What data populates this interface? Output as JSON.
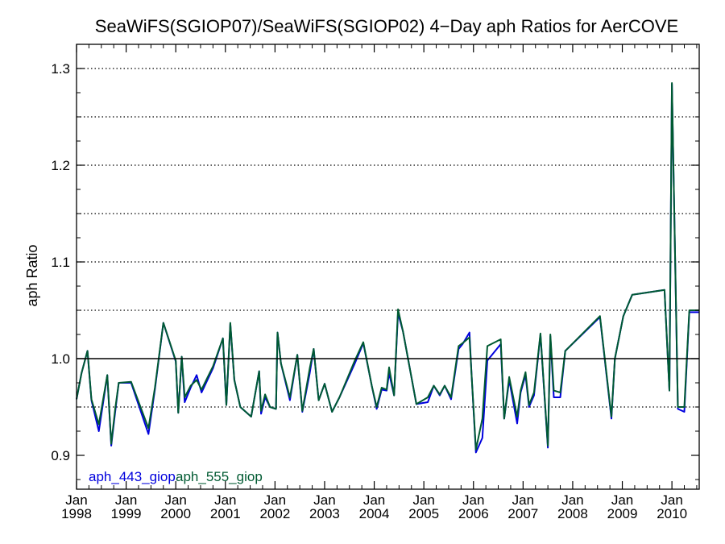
{
  "chart_data": {
    "type": "line",
    "title": "SeaWiFS(SGIOP07)/SeaWiFS(SGIOP02) 4−Day aph Ratios for AerCOVE",
    "xlabel": "",
    "ylabel": "aph Ratio",
    "xlim": [
      1998.0,
      2010.55
    ],
    "ylim": [
      0.865,
      1.325
    ],
    "y_ticks": [
      0.9,
      1.0,
      1.1,
      1.2,
      1.3
    ],
    "y_tick_labels": [
      "0.9",
      "1.0",
      "1.1",
      "1.2",
      "1.3"
    ],
    "y_dotted_grid": [
      0.95,
      1.05,
      1.1,
      1.15,
      1.2,
      1.25,
      1.3
    ],
    "reference_line": 1.0,
    "x_ticks": [
      {
        "value": 1998,
        "month": "Jan",
        "year": "1998"
      },
      {
        "value": 1999,
        "month": "Jan",
        "year": "1999"
      },
      {
        "value": 2000,
        "month": "Jan",
        "year": "2000"
      },
      {
        "value": 2001,
        "month": "Jan",
        "year": "2001"
      },
      {
        "value": 2002,
        "month": "Jan",
        "year": "2002"
      },
      {
        "value": 2003,
        "month": "Jan",
        "year": "2003"
      },
      {
        "value": 2004,
        "month": "Jan",
        "year": "2004"
      },
      {
        "value": 2005,
        "month": "Jan",
        "year": "2005"
      },
      {
        "value": 2006,
        "month": "Jan",
        "year": "2006"
      },
      {
        "value": 2007,
        "month": "Jan",
        "year": "2007"
      },
      {
        "value": 2008,
        "month": "Jan",
        "year": "2008"
      },
      {
        "value": 2009,
        "month": "Jan",
        "year": "2009"
      },
      {
        "value": 2010,
        "month": "Jan",
        "year": "2010"
      }
    ],
    "legend_placement": "bottom-left",
    "series": [
      {
        "name": "aph_443_giop",
        "color": "#0000dd",
        "x": [
          1998.0,
          1998.1,
          1998.22,
          1998.3,
          1998.45,
          1998.62,
          1998.7,
          1998.78,
          1998.85,
          1999.1,
          1999.45,
          1999.58,
          1999.75,
          2000.0,
          2000.05,
          2000.12,
          2000.18,
          2000.3,
          2000.42,
          2000.52,
          2000.75,
          2000.95,
          2001.02,
          2001.1,
          2001.18,
          2001.3,
          2001.52,
          2001.68,
          2001.72,
          2001.8,
          2001.9,
          2002.02,
          2002.05,
          2002.12,
          2002.3,
          2002.45,
          2002.55,
          2002.7,
          2002.78,
          2002.88,
          2003.0,
          2003.15,
          2003.3,
          2003.6,
          2003.78,
          2003.95,
          2004.05,
          2004.15,
          2004.25,
          2004.3,
          2004.4,
          2004.48,
          2004.58,
          2004.85,
          2005.08,
          2005.2,
          2005.32,
          2005.42,
          2005.55,
          2005.7,
          2005.78,
          2005.92,
          2005.96,
          2006.05,
          2006.18,
          2006.28,
          2006.55,
          2006.62,
          2006.72,
          2006.88,
          2006.95,
          2007.05,
          2007.12,
          2007.22,
          2007.35,
          2007.5,
          2007.55,
          2007.62,
          2007.75,
          2007.85,
          2008.55,
          2008.78,
          2008.85,
          2009.02,
          2009.2,
          2009.85,
          2009.95,
          2010.0,
          2010.12,
          2010.25,
          2010.35,
          2010.48,
          2010.55
        ],
        "values": [
          0.958,
          0.985,
          1.008,
          0.957,
          0.925,
          0.983,
          0.91,
          0.945,
          0.975,
          0.975,
          0.922,
          0.968,
          1.037,
          0.997,
          0.944,
          1.002,
          0.955,
          0.97,
          0.983,
          0.965,
          0.99,
          1.021,
          0.952,
          1.036,
          0.978,
          0.95,
          0.94,
          0.987,
          0.943,
          0.96,
          0.95,
          0.948,
          1.027,
          0.995,
          0.957,
          1.004,
          0.945,
          0.985,
          1.01,
          0.957,
          0.974,
          0.945,
          0.96,
          0.994,
          1.016,
          0.972,
          0.948,
          0.968,
          0.967,
          0.985,
          0.962,
          1.047,
          1.028,
          0.953,
          0.955,
          0.972,
          0.962,
          0.972,
          0.958,
          1.01,
          1.015,
          1.027,
          0.985,
          0.903,
          0.918,
          0.998,
          1.015,
          0.938,
          0.978,
          0.933,
          0.965,
          0.983,
          0.95,
          0.962,
          1.025,
          0.908,
          1.023,
          0.96,
          0.96,
          1.008,
          1.043,
          0.938,
          1.0,
          1.044,
          1.066,
          1.071,
          0.967,
          1.284,
          0.948,
          0.945,
          1.048,
          1.048,
          1.048
        ]
      },
      {
        "name": "aph_555_giop",
        "color": "#005a32",
        "x": [
          1998.0,
          1998.1,
          1998.22,
          1998.3,
          1998.45,
          1998.62,
          1998.7,
          1998.78,
          1998.85,
          1999.1,
          1999.45,
          1999.58,
          1999.75,
          2000.0,
          2000.05,
          2000.12,
          2000.18,
          2000.3,
          2000.42,
          2000.52,
          2000.75,
          2000.95,
          2001.02,
          2001.1,
          2001.18,
          2001.3,
          2001.52,
          2001.68,
          2001.72,
          2001.8,
          2001.9,
          2002.02,
          2002.05,
          2002.12,
          2002.3,
          2002.45,
          2002.55,
          2002.7,
          2002.78,
          2002.88,
          2003.0,
          2003.15,
          2003.3,
          2003.6,
          2003.78,
          2003.95,
          2004.05,
          2004.15,
          2004.25,
          2004.3,
          2004.4,
          2004.48,
          2004.58,
          2004.85,
          2005.08,
          2005.2,
          2005.32,
          2005.42,
          2005.55,
          2005.7,
          2005.78,
          2005.92,
          2005.96,
          2006.05,
          2006.18,
          2006.28,
          2006.55,
          2006.62,
          2006.72,
          2006.88,
          2006.95,
          2007.05,
          2007.12,
          2007.22,
          2007.35,
          2007.5,
          2007.55,
          2007.62,
          2007.75,
          2007.85,
          2008.55,
          2008.78,
          2008.85,
          2009.02,
          2009.2,
          2009.85,
          2009.95,
          2010.0,
          2010.12,
          2010.25,
          2010.35,
          2010.48,
          2010.55
        ],
        "values": [
          0.958,
          0.985,
          1.008,
          0.958,
          0.932,
          0.983,
          0.912,
          0.948,
          0.975,
          0.976,
          0.928,
          0.97,
          1.037,
          0.998,
          0.944,
          1.002,
          0.96,
          0.972,
          0.978,
          0.968,
          0.992,
          1.021,
          0.952,
          1.037,
          0.978,
          0.95,
          0.94,
          0.987,
          0.946,
          0.963,
          0.95,
          0.948,
          1.027,
          0.995,
          0.96,
          1.004,
          0.946,
          0.99,
          1.01,
          0.957,
          0.974,
          0.945,
          0.96,
          0.997,
          1.017,
          0.972,
          0.95,
          0.97,
          0.968,
          0.991,
          0.962,
          1.051,
          1.028,
          0.953,
          0.96,
          0.972,
          0.963,
          0.972,
          0.96,
          1.013,
          1.016,
          1.022,
          0.985,
          0.906,
          0.938,
          1.013,
          1.02,
          0.938,
          0.981,
          0.94,
          0.967,
          0.986,
          0.952,
          0.965,
          1.026,
          0.91,
          1.025,
          0.967,
          0.965,
          1.008,
          1.044,
          0.94,
          1.0,
          1.044,
          1.066,
          1.071,
          0.967,
          1.285,
          0.95,
          0.95,
          1.05,
          1.05,
          1.05
        ]
      }
    ]
  },
  "colors": {
    "axis": "#000000",
    "grid": "#000000",
    "background": "#ffffff"
  }
}
